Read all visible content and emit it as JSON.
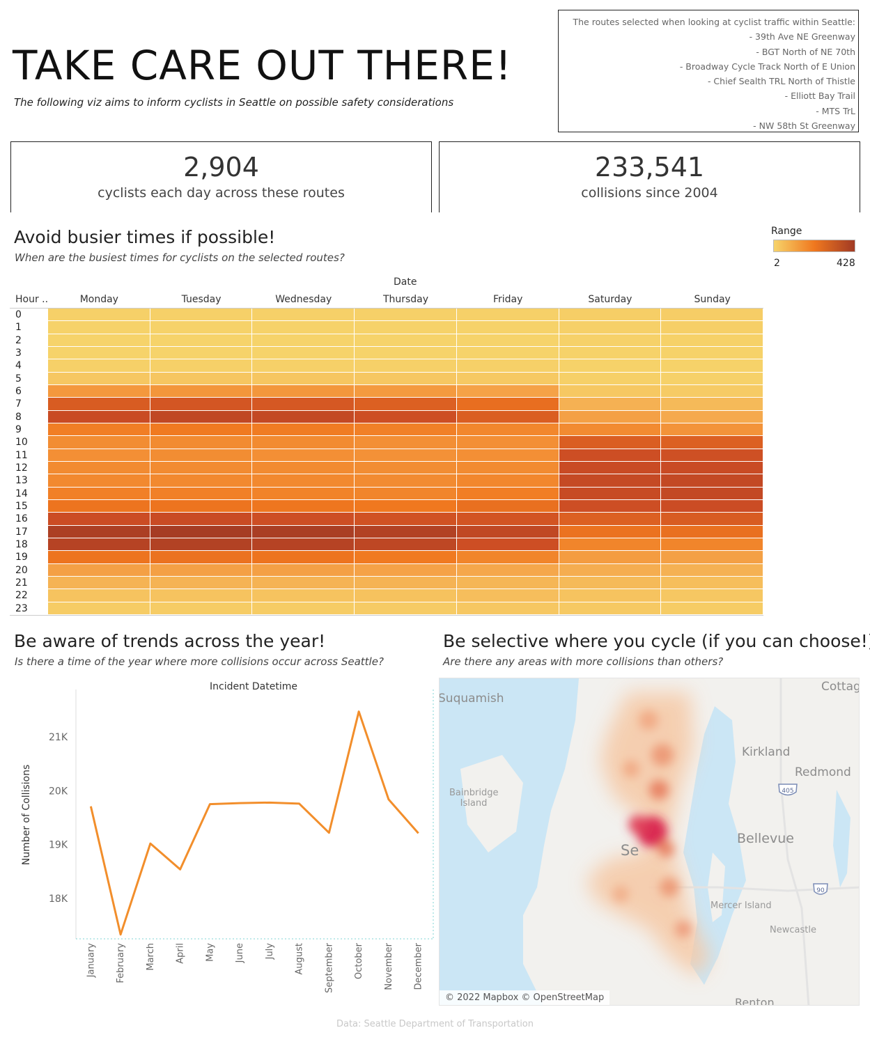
{
  "header": {
    "title": "TAKE CARE OUT THERE!",
    "subtitle": "The following viz aims to inform cyclists in Seattle on possible safety considerations"
  },
  "routes_box": {
    "intro": "The routes selected when looking at cyclist traffic within Seattle:",
    "routes": [
      "- 39th Ave NE Greenway",
      "- BGT North of NE 70th",
      "- Broadway Cycle Track North of E Union",
      "- Chief Sealth TRL North of Thistle",
      "- Elliott Bay Trail",
      "- MTS TrL",
      "- NW 58th St Greenway"
    ]
  },
  "kpis": {
    "cyclists": {
      "value": "2,904",
      "label": "cyclists each day across these routes"
    },
    "collisions": {
      "value": "233,541",
      "label": "collisions since 2004"
    }
  },
  "heatmap_section": {
    "title": "Avoid busier times if possible!",
    "subtitle": "When are the busiest times for cyclists on the selected routes?",
    "legend": {
      "title": "Range",
      "min": "2",
      "max": "428",
      "color_low": "#f6d36a",
      "color_mid": "#f0781f",
      "color_high": "#a13a24"
    }
  },
  "trends_section": {
    "title": "Be aware of trends across the year!",
    "subtitle": "Is there a time of the year where more collisions occur across Seattle?"
  },
  "map_section": {
    "title": "Be selective where you cycle (if you can choose!)",
    "subtitle": "Are there any areas with more collisions than others?",
    "labels": {
      "suquamish": "Suquamish",
      "kirkland": "Kirkland",
      "redmond": "Redmond",
      "bainbridge": "Bainbridge Island",
      "bellevue": "Bellevue",
      "seattle": "Se",
      "mercer": "Mercer Island",
      "newcastle": "Newcastle",
      "renton": "Renton",
      "cottage": "Cottag",
      "shield_405": "405",
      "shield_90": "90"
    },
    "attribution": "© 2022 Mapbox © OpenStreetMap",
    "heat_color": "#d9214e"
  },
  "footer": "Data: Seattle Department of Transportation",
  "chart_data": [
    {
      "type": "heatmap",
      "title": "",
      "x_header": "Date",
      "y_header": "Hour ..",
      "columns": [
        "Monday",
        "Tuesday",
        "Wednesday",
        "Thursday",
        "Friday",
        "Saturday",
        "Sunday"
      ],
      "rows": [
        "0",
        "1",
        "2",
        "3",
        "4",
        "5",
        "6",
        "7",
        "8",
        "9",
        "10",
        "11",
        "12",
        "13",
        "14",
        "15",
        "16",
        "17",
        "18",
        "19",
        "20",
        "21",
        "22",
        "23"
      ],
      "value_range": [
        2,
        428
      ],
      "values": [
        [
          8,
          8,
          8,
          8,
          10,
          14,
          15
        ],
        [
          4,
          4,
          4,
          4,
          5,
          10,
          11
        ],
        [
          3,
          3,
          3,
          3,
          3,
          6,
          7
        ],
        [
          3,
          3,
          3,
          3,
          3,
          4,
          4
        ],
        [
          8,
          8,
          8,
          8,
          8,
          4,
          4
        ],
        [
          30,
          32,
          32,
          30,
          25,
          8,
          6
        ],
        [
          140,
          145,
          142,
          135,
          115,
          28,
          20
        ],
        [
          285,
          300,
          295,
          275,
          240,
          80,
          60
        ],
        [
          330,
          350,
          345,
          320,
          280,
          120,
          100
        ],
        [
          200,
          210,
          205,
          195,
          180,
          170,
          150
        ],
        [
          165,
          170,
          170,
          160,
          160,
          280,
          275
        ],
        [
          160,
          165,
          160,
          155,
          160,
          320,
          315
        ],
        [
          170,
          170,
          170,
          165,
          170,
          330,
          330
        ],
        [
          175,
          175,
          175,
          170,
          180,
          340,
          345
        ],
        [
          195,
          195,
          190,
          185,
          200,
          335,
          345
        ],
        [
          225,
          225,
          220,
          215,
          235,
          320,
          325
        ],
        [
          325,
          330,
          320,
          310,
          305,
          275,
          285
        ],
        [
          400,
          415,
          405,
          385,
          350,
          230,
          235
        ],
        [
          375,
          385,
          375,
          355,
          320,
          185,
          185
        ],
        [
          225,
          230,
          225,
          210,
          185,
          130,
          120
        ],
        [
          120,
          120,
          120,
          115,
          105,
          90,
          80
        ],
        [
          75,
          75,
          75,
          75,
          70,
          60,
          50
        ],
        [
          38,
          40,
          40,
          42,
          50,
          38,
          30
        ],
        [
          18,
          18,
          18,
          20,
          30,
          25,
          18
        ]
      ]
    },
    {
      "type": "line",
      "title": "Incident Datetime",
      "xlabel": "",
      "ylabel": "Number of Collisions",
      "categories": [
        "January",
        "February",
        "March",
        "April",
        "May",
        "June",
        "July",
        "August",
        "September",
        "October",
        "November",
        "December"
      ],
      "values": [
        19710,
        17330,
        19020,
        18540,
        19750,
        19770,
        19780,
        19760,
        19220,
        21470,
        19840,
        19210
      ],
      "y_ticks": [
        "18K",
        "19K",
        "20K",
        "21K"
      ],
      "ylim": [
        17250,
        21750
      ],
      "line_color": "#f28e2b"
    }
  ]
}
